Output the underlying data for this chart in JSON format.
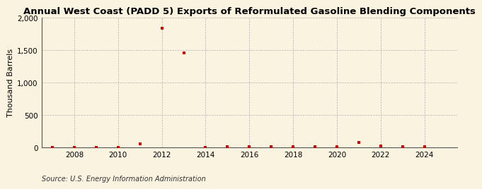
{
  "title": "Annual West Coast (PADD 5) Exports of Reformulated Gasoline Blending Components",
  "ylabel": "Thousand Barrels",
  "source": "Source: U.S. Energy Information Administration",
  "background_color": "#faf3e0",
  "plot_bg_color": "#faf3e0",
  "marker_color": "#cc0000",
  "years": [
    2007,
    2008,
    2009,
    2010,
    2011,
    2012,
    2013,
    2014,
    2015,
    2016,
    2017,
    2018,
    2019,
    2020,
    2021,
    2022,
    2023,
    2024
  ],
  "values": [
    2,
    3,
    4,
    6,
    55,
    1832,
    1460,
    8,
    12,
    10,
    12,
    14,
    16,
    14,
    75,
    22,
    14,
    10
  ],
  "ylim": [
    0,
    2000
  ],
  "yticks": [
    0,
    500,
    1000,
    1500,
    2000
  ],
  "xlim": [
    2006.5,
    2025.5
  ],
  "xticks": [
    2008,
    2010,
    2012,
    2014,
    2016,
    2018,
    2020,
    2022,
    2024
  ],
  "title_fontsize": 9.5,
  "label_fontsize": 8,
  "tick_fontsize": 7.5,
  "source_fontsize": 7
}
